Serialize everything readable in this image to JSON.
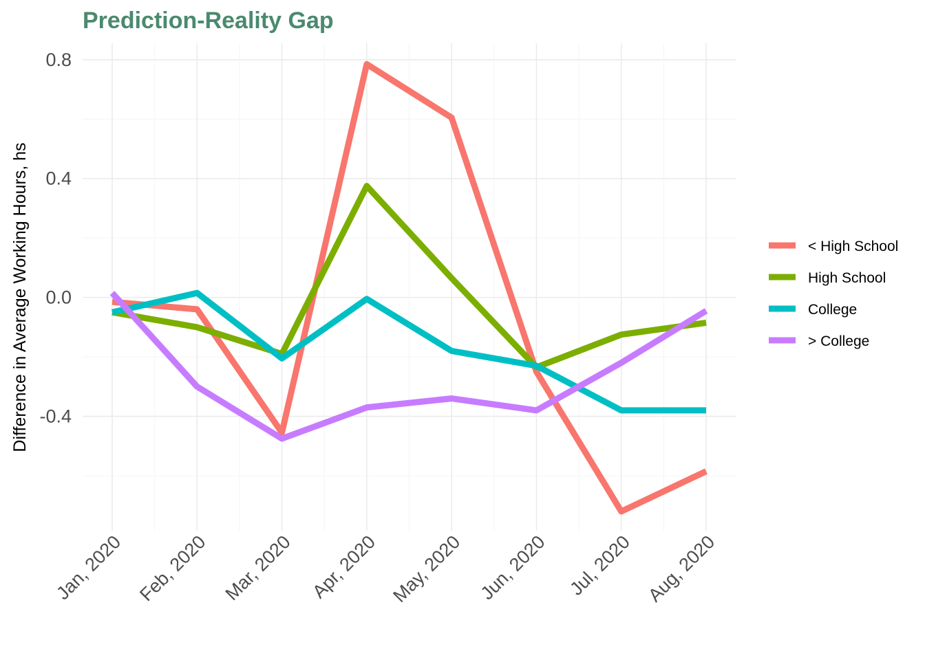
{
  "colors": {
    "title": "#4a8a6e",
    "grid_major": "#ebebeb",
    "grid_minor": "#f4f4f4",
    "tick_text": "#4d4d4d"
  },
  "chart_data": {
    "type": "line",
    "title": "Prediction-Reality Gap",
    "xlabel": "",
    "ylabel": "Difference in Average Working Hours, hs",
    "categories": [
      "Jan, 2020",
      "Feb, 2020",
      "Mar, 2020",
      "Apr, 2020",
      "May, 2020",
      "Jun, 2020",
      "Jul, 2020",
      "Aug, 2020"
    ],
    "yticks": [
      -0.4,
      0.0,
      0.4,
      0.8
    ],
    "ytick_labels": [
      "-0.4",
      "0.0",
      "0.4",
      "0.8"
    ],
    "ylim": [
      -0.785,
      0.855
    ],
    "grid": true,
    "legend_position": "right",
    "series": [
      {
        "name": "< High School",
        "color": "#F8766D",
        "values": [
          -0.015,
          -0.04,
          -0.455,
          0.785,
          0.605,
          -0.25,
          -0.72,
          -0.585
        ]
      },
      {
        "name": "High School",
        "color": "#7CAE00",
        "values": [
          -0.05,
          -0.1,
          -0.19,
          0.375,
          0.065,
          -0.235,
          -0.125,
          -0.085
        ]
      },
      {
        "name": "College",
        "color": "#00BFC4",
        "values": [
          -0.05,
          0.015,
          -0.205,
          -0.005,
          -0.18,
          -0.23,
          -0.38,
          -0.38
        ]
      },
      {
        "name": "> College",
        "color": "#C77CFF",
        "values": [
          0.015,
          -0.3,
          -0.475,
          -0.37,
          -0.34,
          -0.38,
          -0.22,
          -0.045
        ]
      }
    ]
  }
}
